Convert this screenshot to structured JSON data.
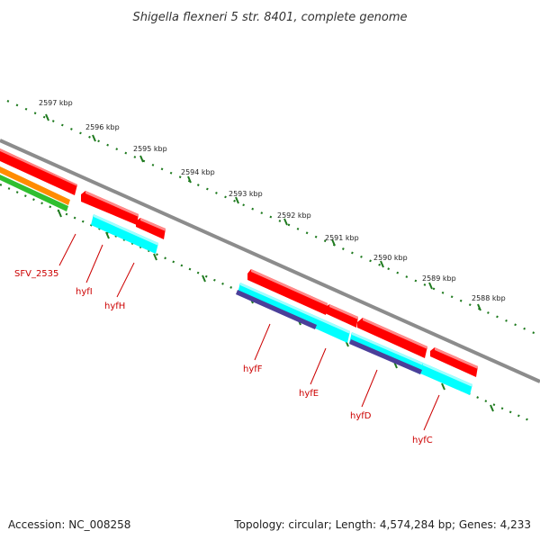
{
  "title": "Shigella flexneri 5 str. 8401, complete genome",
  "footer": {
    "accession": "Accession: NC_008258",
    "topology": "Topology: circular; Length: 4,574,284 bp; Genes: 4,233"
  },
  "colors": {
    "backbone": "#8c8c8c",
    "tick": "#1e7a1e",
    "gene_forward": "#ff0000",
    "gene_cyan": "#00ffff",
    "gene_purple": "#4b3f99",
    "orange_track": "#ff8c00",
    "green_track": "#2fbf2f",
    "label": "#cc0000"
  },
  "kbp_labels": [
    "2597 kbp",
    "2596 kbp",
    "2595 kbp",
    "2594 kbp",
    "2593 kbp",
    "2592 kbp",
    "2591 kbp",
    "2590 kbp",
    "2589 kbp",
    "2588 kbp"
  ],
  "gene_labels": [
    "SFV_2535",
    "hyfI",
    "hyfH",
    "hyfF",
    "hyfE",
    "hyfD",
    "hyfC"
  ]
}
